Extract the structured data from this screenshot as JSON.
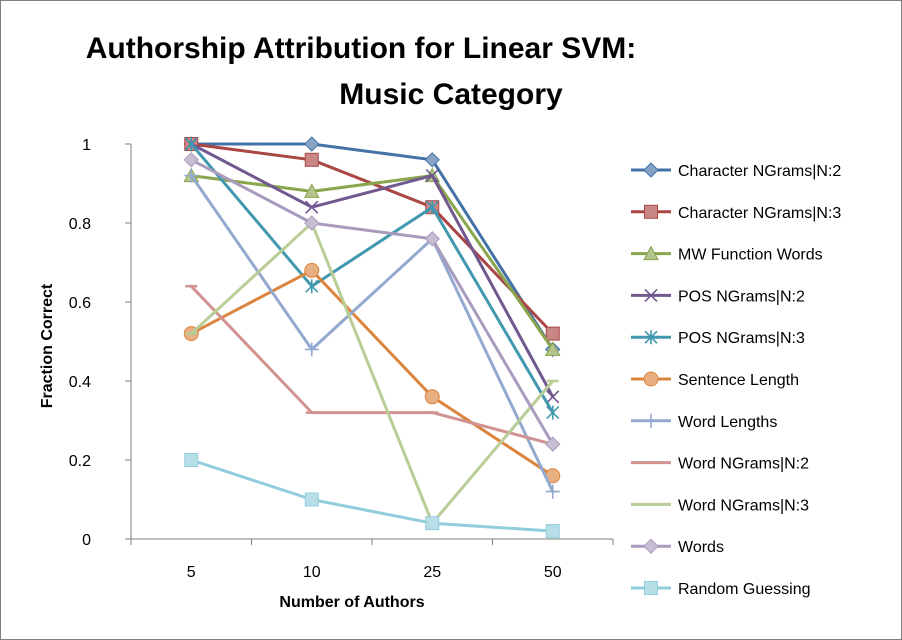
{
  "chart_data": {
    "type": "line",
    "title": "Authorship Attribution for Linear SVM:",
    "subtitle": "Music Category",
    "xlabel": "Number of Authors",
    "ylabel": "Fraction Correct",
    "categories": [
      "5",
      "10",
      "25",
      "50"
    ],
    "y_ticks": [
      "0",
      "0.2",
      "0.4",
      "0.6",
      "0.8",
      "1"
    ],
    "ylim": [
      0,
      1
    ],
    "grid": false,
    "legend_position": "right",
    "series": [
      {
        "name": "Character NGrams|N:2",
        "color": "#4572a7",
        "marker": "diamond",
        "values": [
          1.0,
          1.0,
          0.96,
          0.48
        ]
      },
      {
        "name": "Character NGrams|N:3",
        "color": "#aa4643",
        "marker": "square",
        "values": [
          1.0,
          0.96,
          0.84,
          0.52
        ]
      },
      {
        "name": "MW Function Words",
        "color": "#89a54e",
        "marker": "triangle",
        "values": [
          0.92,
          0.88,
          0.92,
          0.48
        ]
      },
      {
        "name": "POS NGrams|N:2",
        "color": "#71588f",
        "marker": "x",
        "values": [
          1.0,
          0.84,
          0.92,
          0.36
        ]
      },
      {
        "name": "POS NGrams|N:3",
        "color": "#4198af",
        "marker": "asterisk",
        "values": [
          1.0,
          0.64,
          0.84,
          0.32
        ]
      },
      {
        "name": "Sentence Length",
        "color": "#db843d",
        "marker": "circle",
        "values": [
          0.52,
          0.68,
          0.36,
          0.16
        ]
      },
      {
        "name": "Word Lengths",
        "color": "#93a9cf",
        "marker": "plus",
        "values": [
          0.92,
          0.48,
          0.76,
          0.12
        ]
      },
      {
        "name": "Word NGrams|N:2",
        "color": "#d19392",
        "marker": "dash",
        "values": [
          0.64,
          0.32,
          0.32,
          0.24
        ]
      },
      {
        "name": "Word NGrams|N:3",
        "color": "#b9cd96",
        "marker": "dash",
        "values": [
          0.52,
          0.8,
          0.04,
          0.4
        ]
      },
      {
        "name": "Words",
        "color": "#a99bbd",
        "marker": "diamond",
        "values": [
          0.96,
          0.8,
          0.76,
          0.24
        ]
      },
      {
        "name": "Random Guessing",
        "color": "#92cddc",
        "marker": "square",
        "values": [
          0.2,
          0.1,
          0.04,
          0.02
        ]
      }
    ]
  }
}
